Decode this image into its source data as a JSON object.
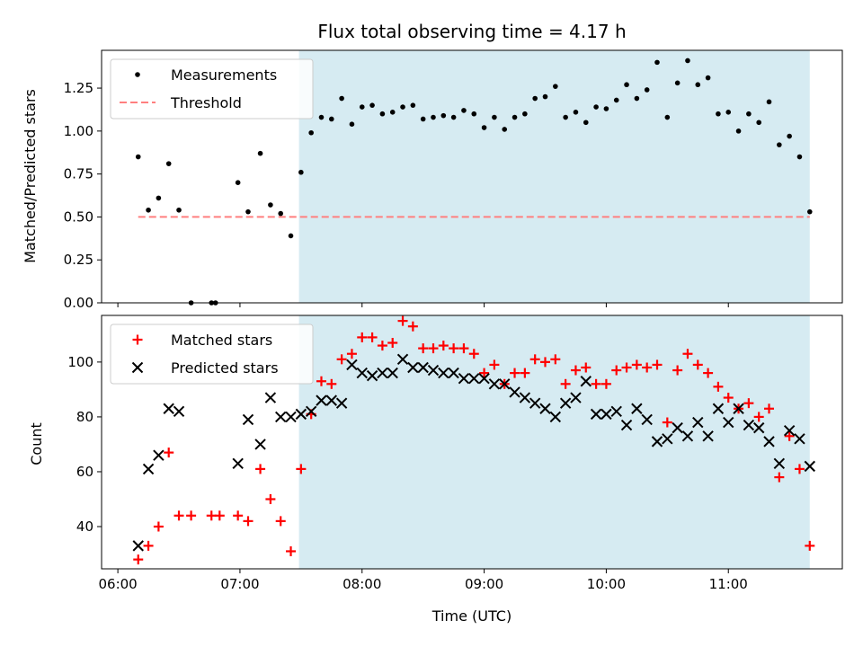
{
  "chart_data": [
    {
      "type": "scatter",
      "title": "Flux total observing time = 4.17 h",
      "xlabel": "",
      "ylabel": "Matched/Predicted stars",
      "ylim": [
        0,
        1.47
      ],
      "yticks": [
        "0.00",
        "0.25",
        "0.50",
        "0.75",
        "1.00",
        "1.25"
      ],
      "xlim": [
        "05:52",
        "11:56"
      ],
      "xtick_labels": [],
      "shaded_region": {
        "start": "07:29",
        "end": "11:40",
        "color": "#add8e6"
      },
      "legend_position": "top-left",
      "legend": [
        "Measurements",
        "Threshold"
      ],
      "threshold": {
        "name": "Threshold",
        "value": 0.5,
        "start": "06:10",
        "end": "11:40",
        "color": "#ff7f7f"
      },
      "series": [
        {
          "name": "Measurements",
          "color": "#000000",
          "marker": "dot",
          "points": [
            [
              "06:10",
              0.85
            ],
            [
              "06:15",
              0.54
            ],
            [
              "06:20",
              0.61
            ],
            [
              "06:25",
              0.81
            ],
            [
              "06:30",
              0.54
            ],
            [
              "06:36",
              0.0
            ],
            [
              "06:46",
              0.0
            ],
            [
              "06:48",
              0.0
            ],
            [
              "06:59",
              0.7
            ],
            [
              "07:04",
              0.53
            ],
            [
              "07:10",
              0.87
            ],
            [
              "07:15",
              0.57
            ],
            [
              "07:20",
              0.52
            ],
            [
              "07:25",
              0.39
            ],
            [
              "07:30",
              0.76
            ],
            [
              "07:35",
              0.99
            ],
            [
              "07:40",
              1.08
            ],
            [
              "07:45",
              1.07
            ],
            [
              "07:50",
              1.19
            ],
            [
              "07:55",
              1.04
            ],
            [
              "08:00",
              1.14
            ],
            [
              "08:05",
              1.15
            ],
            [
              "08:10",
              1.1
            ],
            [
              "08:15",
              1.11
            ],
            [
              "08:20",
              1.14
            ],
            [
              "08:25",
              1.15
            ],
            [
              "08:30",
              1.07
            ],
            [
              "08:35",
              1.08
            ],
            [
              "08:40",
              1.09
            ],
            [
              "08:45",
              1.08
            ],
            [
              "08:50",
              1.12
            ],
            [
              "08:55",
              1.1
            ],
            [
              "09:00",
              1.02
            ],
            [
              "09:05",
              1.08
            ],
            [
              "09:10",
              1.01
            ],
            [
              "09:15",
              1.08
            ],
            [
              "09:20",
              1.1
            ],
            [
              "09:25",
              1.19
            ],
            [
              "09:30",
              1.2
            ],
            [
              "09:35",
              1.26
            ],
            [
              "09:40",
              1.08
            ],
            [
              "09:45",
              1.11
            ],
            [
              "09:50",
              1.05
            ],
            [
              "09:55",
              1.14
            ],
            [
              "10:00",
              1.13
            ],
            [
              "10:05",
              1.18
            ],
            [
              "10:10",
              1.27
            ],
            [
              "10:15",
              1.19
            ],
            [
              "10:20",
              1.24
            ],
            [
              "10:25",
              1.4
            ],
            [
              "10:30",
              1.08
            ],
            [
              "10:35",
              1.28
            ],
            [
              "10:40",
              1.41
            ],
            [
              "10:45",
              1.27
            ],
            [
              "10:50",
              1.31
            ],
            [
              "10:55",
              1.1
            ],
            [
              "11:00",
              1.11
            ],
            [
              "11:05",
              1.0
            ],
            [
              "11:10",
              1.1
            ],
            [
              "11:15",
              1.05
            ],
            [
              "11:20",
              1.17
            ],
            [
              "11:25",
              0.92
            ],
            [
              "11:30",
              0.97
            ],
            [
              "11:35",
              0.85
            ],
            [
              "11:40",
              0.53
            ]
          ]
        }
      ]
    },
    {
      "type": "scatter",
      "title": "",
      "xlabel": "Time (UTC)",
      "ylabel": "Count",
      "ylim": [
        24.6,
        117
      ],
      "yticks": [
        "40",
        "60",
        "80",
        "100"
      ],
      "xlim": [
        "05:52",
        "11:56"
      ],
      "xtick_labels": [
        "06:00",
        "07:00",
        "08:00",
        "09:00",
        "10:00",
        "11:00"
      ],
      "shaded_region": {
        "start": "07:29",
        "end": "11:40",
        "color": "#add8e6"
      },
      "legend_position": "top-left",
      "legend": [
        "Matched stars",
        "Predicted stars"
      ],
      "series": [
        {
          "name": "Matched stars",
          "color": "#ff0000",
          "marker": "plus",
          "points": [
            [
              "06:10",
              28
            ],
            [
              "06:15",
              33
            ],
            [
              "06:20",
              40
            ],
            [
              "06:25",
              67
            ],
            [
              "06:30",
              44
            ],
            [
              "06:36",
              44
            ],
            [
              "06:46",
              44
            ],
            [
              "06:50",
              44
            ],
            [
              "06:59",
              44
            ],
            [
              "07:04",
              42
            ],
            [
              "07:10",
              61
            ],
            [
              "07:15",
              50
            ],
            [
              "07:20",
              42
            ],
            [
              "07:25",
              31
            ],
            [
              "07:30",
              61
            ],
            [
              "07:35",
              81
            ],
            [
              "07:40",
              93
            ],
            [
              "07:45",
              92
            ],
            [
              "07:50",
              101
            ],
            [
              "07:55",
              103
            ],
            [
              "08:00",
              109
            ],
            [
              "08:05",
              109
            ],
            [
              "08:10",
              106
            ],
            [
              "08:15",
              107
            ],
            [
              "08:20",
              115
            ],
            [
              "08:25",
              113
            ],
            [
              "08:30",
              105
            ],
            [
              "08:35",
              105
            ],
            [
              "08:40",
              106
            ],
            [
              "08:45",
              105
            ],
            [
              "08:50",
              105
            ],
            [
              "08:55",
              103
            ],
            [
              "09:00",
              96
            ],
            [
              "09:05",
              99
            ],
            [
              "09:10",
              92
            ],
            [
              "09:15",
              96
            ],
            [
              "09:20",
              96
            ],
            [
              "09:25",
              101
            ],
            [
              "09:30",
              100
            ],
            [
              "09:35",
              101
            ],
            [
              "09:40",
              92
            ],
            [
              "09:45",
              97
            ],
            [
              "09:50",
              98
            ],
            [
              "09:55",
              92
            ],
            [
              "10:00",
              92
            ],
            [
              "10:05",
              97
            ],
            [
              "10:10",
              98
            ],
            [
              "10:15",
              99
            ],
            [
              "10:20",
              98
            ],
            [
              "10:25",
              99
            ],
            [
              "10:30",
              78
            ],
            [
              "10:35",
              97
            ],
            [
              "10:40",
              103
            ],
            [
              "10:45",
              99
            ],
            [
              "10:50",
              96
            ],
            [
              "10:55",
              91
            ],
            [
              "11:00",
              87
            ],
            [
              "11:05",
              83
            ],
            [
              "11:10",
              85
            ],
            [
              "11:15",
              80
            ],
            [
              "11:20",
              83
            ],
            [
              "11:25",
              58
            ],
            [
              "11:30",
              73
            ],
            [
              "11:35",
              61
            ],
            [
              "11:40",
              33
            ]
          ]
        },
        {
          "name": "Predicted stars",
          "color": "#000000",
          "marker": "cross",
          "points": [
            [
              "06:10",
              33
            ],
            [
              "06:15",
              61
            ],
            [
              "06:20",
              66
            ],
            [
              "06:25",
              83
            ],
            [
              "06:30",
              82
            ],
            [
              "06:59",
              63
            ],
            [
              "07:04",
              79
            ],
            [
              "07:10",
              70
            ],
            [
              "07:15",
              87
            ],
            [
              "07:20",
              80
            ],
            [
              "07:25",
              80
            ],
            [
              "07:30",
              81
            ],
            [
              "07:35",
              82
            ],
            [
              "07:40",
              86
            ],
            [
              "07:45",
              86
            ],
            [
              "07:50",
              85
            ],
            [
              "07:55",
              99
            ],
            [
              "08:00",
              96
            ],
            [
              "08:05",
              95
            ],
            [
              "08:10",
              96
            ],
            [
              "08:15",
              96
            ],
            [
              "08:20",
              101
            ],
            [
              "08:25",
              98
            ],
            [
              "08:30",
              98
            ],
            [
              "08:35",
              97
            ],
            [
              "08:40",
              96
            ],
            [
              "08:45",
              96
            ],
            [
              "08:50",
              94
            ],
            [
              "08:55",
              94
            ],
            [
              "09:00",
              94
            ],
            [
              "09:05",
              92
            ],
            [
              "09:10",
              92
            ],
            [
              "09:15",
              89
            ],
            [
              "09:20",
              87
            ],
            [
              "09:25",
              85
            ],
            [
              "09:30",
              83
            ],
            [
              "09:35",
              80
            ],
            [
              "09:40",
              85
            ],
            [
              "09:45",
              87
            ],
            [
              "09:50",
              93
            ],
            [
              "09:55",
              81
            ],
            [
              "10:00",
              81
            ],
            [
              "10:05",
              82
            ],
            [
              "10:10",
              77
            ],
            [
              "10:15",
              83
            ],
            [
              "10:20",
              79
            ],
            [
              "10:25",
              71
            ],
            [
              "10:30",
              72
            ],
            [
              "10:35",
              76
            ],
            [
              "10:40",
              73
            ],
            [
              "10:45",
              78
            ],
            [
              "10:50",
              73
            ],
            [
              "10:55",
              83
            ],
            [
              "11:00",
              78
            ],
            [
              "11:05",
              83
            ],
            [
              "11:10",
              77
            ],
            [
              "11:15",
              76
            ],
            [
              "11:20",
              71
            ],
            [
              "11:25",
              63
            ],
            [
              "11:30",
              75
            ],
            [
              "11:35",
              72
            ],
            [
              "11:40",
              62
            ]
          ]
        }
      ]
    }
  ]
}
